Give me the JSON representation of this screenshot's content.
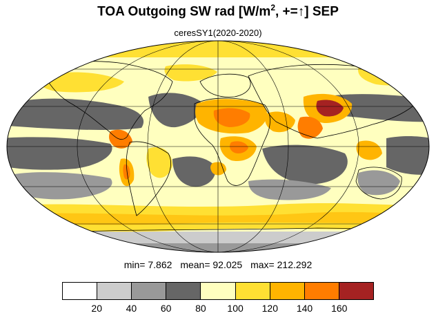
{
  "title": {
    "main": "TOA Outgoing SW rad [W/m",
    "sup": "2",
    "rest": ", +=↑] SEP"
  },
  "subtitle": "ceresSY1(2020-2020)",
  "stats": {
    "min": "min=   7.862",
    "mean": "mean=  92.025",
    "max": "max= 212.292"
  },
  "colorbar": {
    "colors": [
      "#ffffff",
      "#cccccc",
      "#999999",
      "#666666",
      "#ffffbf",
      "#ffe033",
      "#ffb400",
      "#ff7d00",
      "#a52222"
    ],
    "tick_labels": [
      "20",
      "40",
      "60",
      "80",
      "100",
      "120",
      "140",
      "160"
    ]
  },
  "chart_data": {
    "type": "heatmap",
    "projection": "mollweide",
    "variable": "TOA Outgoing SW rad",
    "units": "W/m2",
    "period": "SEP",
    "dataset": "ceresSY1(2020-2020)",
    "min": 7.862,
    "mean": 92.025,
    "max": 212.292,
    "levels": [
      20,
      40,
      60,
      80,
      100,
      120,
      140,
      160
    ],
    "ylim": [
      -90,
      90
    ],
    "xlim": [
      -180,
      180
    ],
    "grid": true
  }
}
